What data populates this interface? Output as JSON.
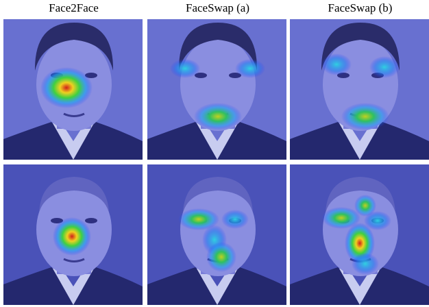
{
  "columns": [
    "Face2Face",
    "FaceSwap (a)",
    "FaceSwap (b)"
  ]
}
